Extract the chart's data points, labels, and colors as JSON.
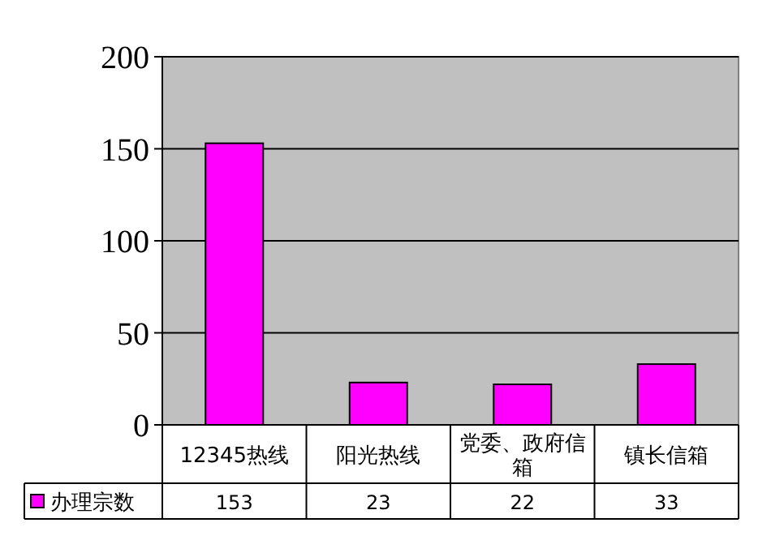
{
  "chart_data": {
    "type": "bar",
    "categories": [
      "12345热线",
      "阳光热线",
      "党委、政府信箱",
      "镇长信箱"
    ],
    "series": [
      {
        "name": "办理宗数",
        "color": "#ff00ff",
        "values": [
          153,
          23,
          22,
          33
        ]
      }
    ],
    "ylim": [
      0,
      200
    ],
    "yticks": [
      0,
      50,
      100,
      150,
      200
    ],
    "grid": "y",
    "legend": "bottom",
    "data_labels": true
  }
}
